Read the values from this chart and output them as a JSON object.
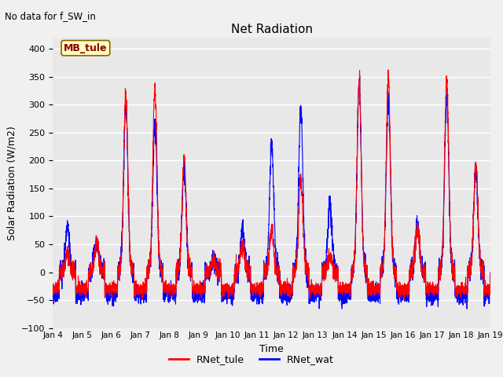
{
  "title": "Net Radiation",
  "xlabel": "Time",
  "ylabel": "Solar Radiation (W/m2)",
  "annotation": "No data for f_SW_in",
  "textbox_label": "MB_tule",
  "legend_labels": [
    "RNet_tule",
    "RNet_wat"
  ],
  "line_colors": [
    "red",
    "blue"
  ],
  "ylim": [
    -100,
    420
  ],
  "yticks": [
    -100,
    -50,
    0,
    50,
    100,
    150,
    200,
    250,
    300,
    350,
    400
  ],
  "xtick_labels": [
    "Jan 4",
    "Jan 5",
    "Jan 6",
    "Jan 7",
    "Jan 8",
    "Jan 9",
    "Jan 10",
    "Jan 11",
    "Jan 12",
    "Jan 13",
    "Jan 14",
    "Jan 15",
    "Jan 16",
    "Jan 17",
    "Jan 18",
    "Jan 19"
  ],
  "bg_color": "#e8e8e8",
  "fig_bg": "#f0f0f0",
  "grid_color": "white",
  "n_points": 3600,
  "seed": 42,
  "day_amps_tule": [
    35,
    55,
    320,
    330,
    205,
    20,
    50,
    75,
    165,
    30,
    345,
    350,
    80,
    345,
    190
  ],
  "day_amps_wat": [
    80,
    55,
    300,
    265,
    185,
    20,
    75,
    230,
    295,
    125,
    340,
    310,
    80,
    315,
    185
  ],
  "night_base": -30,
  "night_base_wat": -40
}
